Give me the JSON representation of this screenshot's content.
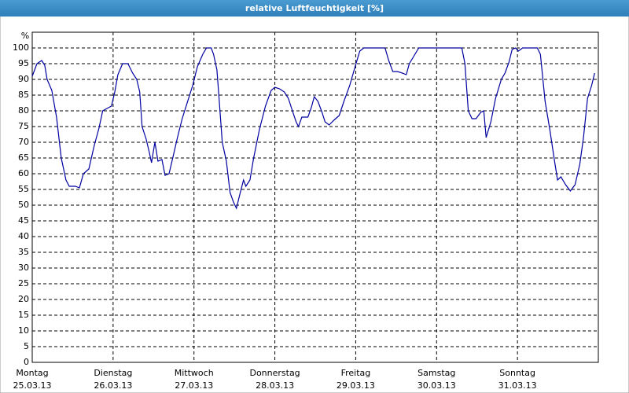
{
  "chart_data": {
    "type": "line",
    "title": "relative Luftfeuchtigkeit [%]",
    "y_label": "%",
    "color": "#0000a0",
    "grid": true,
    "xlim": [
      0,
      168
    ],
    "ylim": [
      0,
      100
    ],
    "yticks": [
      0,
      5,
      10,
      15,
      20,
      25,
      30,
      35,
      40,
      45,
      50,
      55,
      60,
      65,
      70,
      75,
      80,
      85,
      90,
      95,
      100
    ],
    "xticks": [
      {
        "value": 0,
        "day": "Montag",
        "date": "25.03.13"
      },
      {
        "value": 24,
        "day": "Dienstag",
        "date": "26.03.13"
      },
      {
        "value": 48,
        "day": "Mittwoch",
        "date": "27.03.13"
      },
      {
        "value": 72,
        "day": "Donnerstag",
        "date": "28.03.13"
      },
      {
        "value": 96,
        "day": "Freitag",
        "date": "29.03.13"
      },
      {
        "value": 120,
        "day": "Samstag",
        "date": "30.03.13"
      },
      {
        "value": 144,
        "day": "Sonntag",
        "date": "31.03.13"
      }
    ],
    "x": [
      0,
      1.4,
      2.8,
      3.7,
      4.4,
      5.8,
      7.2,
      8.6,
      10.0,
      11.0,
      12.8,
      14.0,
      15.2,
      16.8,
      18.4,
      19.8,
      20.9,
      22.6,
      23.5,
      24.5,
      25.4,
      26.8,
      28.4,
      29.8,
      31.0,
      31.9,
      32.6,
      33.8,
      34.7,
      35.4,
      36.4,
      37.3,
      38.5,
      39.4,
      40.6,
      41.7,
      43.1,
      44.5,
      46.4,
      47.6,
      49.0,
      50.6,
      51.7,
      53.1,
      53.8,
      54.8,
      55.5,
      56.4,
      57.6,
      58.7,
      59.7,
      60.6,
      61.5,
      62.7,
      63.4,
      64.6,
      65.7,
      67.4,
      69.2,
      70.9,
      72.0,
      73.4,
      74.8,
      76.0,
      77.2,
      78.3,
      79.0,
      80.0,
      81.8,
      82.8,
      83.7,
      84.8,
      86.0,
      86.9,
      88.1,
      89.5,
      91.1,
      92.5,
      94.2,
      95.8,
      97.2,
      98.4,
      104.7,
      105.8,
      107.0,
      108.4,
      109.8,
      111.0,
      111.9,
      113.3,
      114.7,
      127.5,
      128.4,
      129.4,
      130.5,
      131.7,
      133.1,
      134.0,
      134.7,
      136.1,
      137.5,
      139.2,
      140.3,
      141.5,
      142.4,
      143.4,
      144.3,
      145.5,
      149.9,
      150.8,
      152.2,
      153.6,
      155.0,
      155.9,
      156.9,
      158.3,
      159.7,
      161.1,
      162.5,
      163.6,
      164.8,
      166.0,
      166.9
    ],
    "values": [
      91,
      95,
      96,
      94.5,
      90,
      86.5,
      78,
      65,
      58,
      56,
      56,
      55.5,
      60,
      61.5,
      69,
      74.5,
      80,
      81,
      81.5,
      86,
      91.5,
      95,
      95,
      92,
      90,
      86,
      75,
      71,
      67,
      63.5,
      70,
      64,
      64.5,
      59.5,
      60,
      65,
      71.5,
      77.5,
      84,
      88,
      94,
      98,
      100,
      100,
      98,
      93,
      83,
      70,
      64,
      54,
      51,
      49,
      53,
      58,
      56,
      58,
      65,
      74,
      81.5,
      86.5,
      87.5,
      87,
      86,
      84,
      80,
      76.5,
      75,
      78,
      78,
      81,
      84.5,
      83,
      79.5,
      76.5,
      75.5,
      77,
      78.5,
      83,
      88,
      94,
      99,
      100,
      100,
      96,
      92.5,
      92.5,
      92,
      91.5,
      95,
      97.5,
      100,
      100,
      95,
      80,
      77.5,
      77.5,
      79.5,
      80,
      71.5,
      76.5,
      84,
      90,
      92,
      95.5,
      99.5,
      100,
      99,
      100,
      100,
      98,
      83,
      74,
      64,
      58,
      59,
      56.5,
      54.5,
      56.5,
      63,
      71.5,
      84,
      88,
      92
    ]
  }
}
